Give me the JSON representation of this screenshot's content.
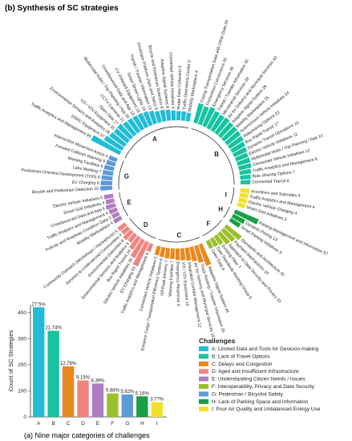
{
  "panel_b_title": "(b) Synthesis of SC strategies",
  "panel_a_caption": "(a) Nine major categories of challenges",
  "legend_title": "Challenges",
  "colors": {
    "A": "#22bcd6",
    "B": "#17c3a0",
    "C": "#e8891f",
    "D": "#f08580",
    "E": "#b07cc3",
    "F": "#9bc02c",
    "G": "#5c9ad8",
    "H": "#1a9e46",
    "I": "#f2e12a"
  },
  "chart_data": [
    {
      "type": "bar",
      "title": "",
      "xlabel": "",
      "ylabel": "Count of SC Strategies",
      "ylim": [
        0,
        430
      ],
      "yticks": [
        0,
        100,
        200,
        300,
        400
      ],
      "categories": [
        "A",
        "B",
        "C",
        "D",
        "E",
        "F",
        "G",
        "H",
        "I"
      ],
      "values": [
        420,
        330,
        194,
        140,
        128,
        90,
        86,
        79,
        57
      ],
      "labels": [
        "27.5%",
        "21.74%",
        "12.76%",
        "9.19%",
        "8.39%",
        "5.88%",
        "5.62%",
        "5.16%",
        "3.77%"
      ],
      "legend": [
        {
          "key": "A",
          "text": "A: Limited Data and Tools for Desicion-making"
        },
        {
          "key": "B",
          "text": "B: Lack of Travel Options"
        },
        {
          "key": "C",
          "text": "C: Delays and Congestion"
        },
        {
          "key": "D",
          "text": "D: Aged and Insufficient Infrastructure"
        },
        {
          "key": "E",
          "text": "E: Understanding Citizen Needs / Issues"
        },
        {
          "key": "F",
          "text": "F: Interoperability, Privacy and Data Security"
        },
        {
          "key": "G",
          "text": "G: Pedestrian / Bicyclist Safety"
        },
        {
          "key": "H",
          "text": "H: Lack of Parking Space and Information"
        },
        {
          "key": "I",
          "text": "I: Poor Air Quality and Unbalanced Energy Use"
        }
      ]
    },
    {
      "type": "radial_bar",
      "title": "(b) Synthesis of SC strategies",
      "groups": [
        {
          "letter": "A",
          "items": [
            {
              "label": "Traffic Analytics and Management 95",
              "value": 95
            },
            {
              "label": "DSRC Equipment 37",
              "value": 37
            },
            {
              "label": "Environmental Sensors and Analytics 28",
              "value": 28
            },
            {
              "label": "V2I / V2V Equipment 25",
              "value": 25
            },
            {
              "label": "Open Data 27",
              "value": 27
            },
            {
              "label": "CCTV Cameras 21",
              "value": 21
            },
            {
              "label": "Multimodal Hubs / Trip Planning / App 20",
              "value": 20
            },
            {
              "label": "Crowdsourced Data and App 19",
              "value": 19
            },
            {
              "label": "CV Onboard Equipment 18",
              "value": 18
            },
            {
              "label": "Smart Street Lights 16",
              "value": 16
            },
            {
              "label": "Transit / Traveler Information 13",
              "value": 13
            },
            {
              "label": "Developer Platform (Apis and Sdks) 9",
              "value": 9
            },
            {
              "label": "Bicycle and Pedestrian Detection 9",
              "value": 9
            },
            {
              "label": "Adaptive Signal Systems 8",
              "value": 8
            },
            {
              "label": "Connected Vehicle Initiatives 6",
              "value": 6
            },
            {
              "label": "Probe Data Collection 5",
              "value": 5
            },
            {
              "label": "Traffic Operations Center 5",
              "value": 5
            },
            {
              "label": "Mobility Marketplace 4",
              "value": 4
            }
          ]
        },
        {
          "letter": "B",
          "items": [
            {
              "label": "Fusing Transportation Data with Other Data 34",
              "value": 34
            },
            {
              "label": "Frictionless Connections 30",
              "value": 30
            },
            {
              "label": "Emergency Services 36",
              "value": 36
            },
            {
              "label": "Transit / Traveler Information 30",
              "value": 30
            },
            {
              "label": "Microtransit Services 28",
              "value": 28
            },
            {
              "label": "AV for Delivery and Municipal Services 30",
              "value": 30
            },
            {
              "label": "Adaptive Signal System 26",
              "value": 26
            },
            {
              "label": "Mobility Marketplace 25",
              "value": 25
            },
            {
              "label": "Autonomous Vehicle Initiatives 24",
              "value": 24
            },
            {
              "label": "Ridesharing Options 22",
              "value": 22
            },
            {
              "label": "Bus Rapid Transit 17",
              "value": 17
            },
            {
              "label": "Dynamic Transit Operations 15",
              "value": 15
            },
            {
              "label": "Electric Vehicle Initiatives 12",
              "value": 12
            },
            {
              "label": "Multimodal Hubs / Trip Planning / App 13",
              "value": 13
            },
            {
              "label": "Connected Vehicle Initiatives 12",
              "value": 12
            },
            {
              "label": "Traffic Analytics and Management 9",
              "value": 9
            },
            {
              "label": "Ride Sharing Options 7",
              "value": 7
            },
            {
              "label": "Connected Transit 6",
              "value": 6
            }
          ]
        },
        {
          "letter": "I",
          "items": [
            {
              "label": "Incentives and Subsidies 5",
              "value": 5
            },
            {
              "label": "Traffic Analytics and Management 4",
              "value": 4
            },
            {
              "label": "Electric Vehicle Charging 4",
              "value": 4
            },
            {
              "label": "Smart Grid Initiatives 3",
              "value": 3
            }
          ]
        },
        {
          "letter": "H",
          "items": [
            {
              "label": "Parking Management and Information 57",
              "value": 57
            },
            {
              "label": "Dynamic Pricing 13",
              "value": 13
            },
            {
              "label": "Smart Parking Initiatives 9",
              "value": 9
            }
          ]
        },
        {
          "letter": "F",
          "items": [
            {
              "label": "Standards and Architecture 31",
              "value": 31
            },
            {
              "label": "Payment Mechanisms 19",
              "value": 19
            },
            {
              "label": "Approach to Data Security and Privacy 15",
              "value": 15
            },
            {
              "label": "Existing Fiber 7",
              "value": 7
            },
            {
              "label": "Data Standards Working Group 5",
              "value": 5
            },
            {
              "label": "Open Data 4",
              "value": 4
            }
          ]
        },
        {
          "letter": "C",
          "items": [
            {
              "label": "Adaptive Signal System 44",
              "value": 44
            },
            {
              "label": "Truck Routing / Traveler Information 25",
              "value": 25
            },
            {
              "label": "AV for Delivery and Municipal Services 16",
              "value": 16
            },
            {
              "label": "Integrated Corridor Management 12",
              "value": 12
            },
            {
              "label": "V2I / V2V Equipment 10",
              "value": 10
            },
            {
              "label": "Emergency Response 9",
              "value": 9
            },
            {
              "label": "Warning Facilities 7",
              "value": 7
            },
            {
              "label": "Off-Peak Delivery 7",
              "value": 7
            },
            {
              "label": "Enhance Cargo Transportation Efficiency System 6",
              "value": 6
            },
            {
              "label": "Connected Vehicle Initiatives 5",
              "value": 5
            }
          ]
        },
        {
          "letter": "D",
          "items": [
            {
              "label": "Traffic Analytics and Management 4",
              "value": 4
            },
            {
              "label": "EV Charging 63",
              "value": 63
            },
            {
              "label": "Electric Vehicle Initiatives 36",
              "value": 36
            },
            {
              "label": "Bus Rapid Transit 16",
              "value": 16
            },
            {
              "label": "Environmental Sensors and Analytics 6",
              "value": 6
            },
            {
              "label": "Environmental Outcomes 8",
              "value": 8
            },
            {
              "label": "Services to Underserved Communities 4",
              "value": 4
            },
            {
              "label": "Community Outreach (Workshops / Hackathons) 5",
              "value": 5
            }
          ]
        },
        {
          "letter": "E",
          "items": [
            {
              "label": "Mobility Marketplace 4",
              "value": 4
            },
            {
              "label": "Pothole and Roadway Condition Data 3",
              "value": 3
            },
            {
              "label": "Traffic Analytics and Management 4",
              "value": 4
            },
            {
              "label": "Crowdsourced Data and App 6",
              "value": 6
            },
            {
              "label": "Smart Grid Initiatives 4",
              "value": 4
            },
            {
              "label": "Electric Vehicle Initiatives 5",
              "value": 5
            }
          ]
        },
        {
          "letter": "G",
          "items": [
            {
              "label": "Bicycle and Pedestrian Detection 10",
              "value": 10
            },
            {
              "label": "EV Charging 9",
              "value": 9
            },
            {
              "label": "Pedestrian-Oriented Development (TOD) 8",
              "value": 8
            },
            {
              "label": "Lane Marking 7",
              "value": 7
            },
            {
              "label": "Warning Facilities 6",
              "value": 6
            },
            {
              "label": "Forward Collision Warning 5",
              "value": 5
            },
            {
              "label": "Intersection Movement Assist 4",
              "value": 4
            }
          ]
        }
      ]
    }
  ]
}
